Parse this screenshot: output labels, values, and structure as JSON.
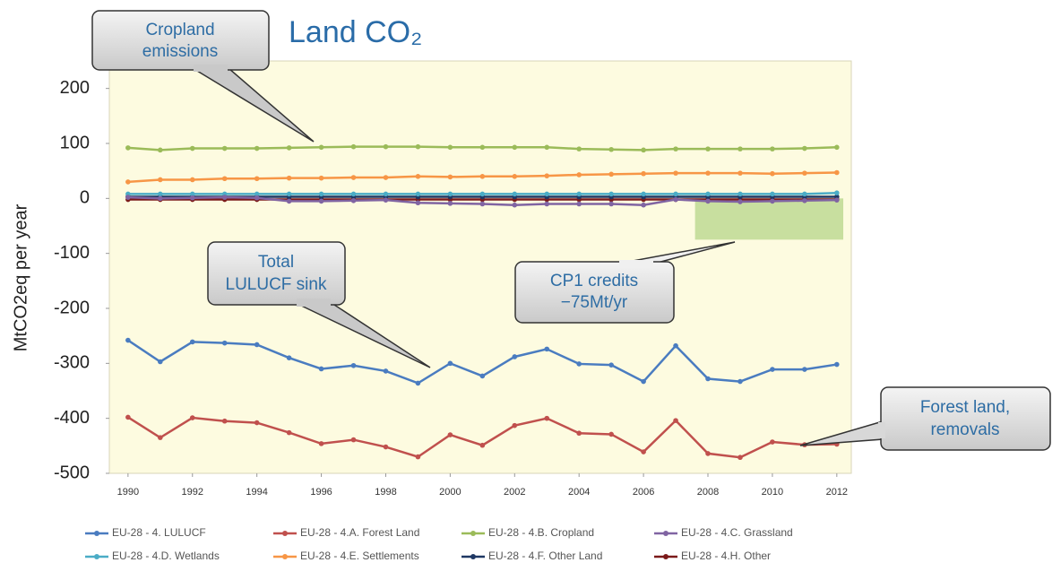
{
  "chart_data": {
    "type": "line",
    "title": "Land CO₂",
    "ylabel": "MtCO2eq per year",
    "x": [
      1990,
      1991,
      1992,
      1993,
      1994,
      1995,
      1996,
      1997,
      1998,
      1999,
      2000,
      2001,
      2002,
      2003,
      2004,
      2005,
      2006,
      2007,
      2008,
      2009,
      2010,
      2011,
      2012
    ],
    "xlim": [
      1989.42,
      2012.45
    ],
    "xticks": [
      1990,
      1992,
      1994,
      1996,
      1998,
      2000,
      2002,
      2004,
      2006,
      2008,
      2010,
      2012
    ],
    "ylim": [
      -500,
      250
    ],
    "yticks": [
      -500,
      -400,
      -300,
      -200,
      -100,
      0,
      100,
      200
    ],
    "grid": false,
    "series": [
      {
        "name": "EU-28 - 4. LULUCF",
        "color": "#4a7cc0",
        "values": [
          -258,
          -297,
          -261,
          -263,
          -266,
          -290,
          -310,
          -304,
          -314,
          -336,
          -300,
          -323,
          -288,
          -274,
          -301,
          -303,
          -333,
          -268,
          -328,
          -333,
          -311,
          -311,
          -302
        ]
      },
      {
        "name": "EU-28 - 4.A. Forest Land",
        "color": "#c0504d",
        "values": [
          -398,
          -435,
          -399,
          -405,
          -408,
          -426,
          -446,
          -439,
          -452,
          -470,
          -430,
          -449,
          -413,
          -400,
          -427,
          -429,
          -461,
          -404,
          -464,
          -471,
          -443,
          -448,
          -447
        ]
      },
      {
        "name": "EU-28 - 4.B. Cropland",
        "color": "#9bbb59",
        "values": [
          92,
          88,
          91,
          91,
          91,
          92,
          93,
          94,
          94,
          94,
          93,
          93,
          93,
          93,
          90,
          89,
          88,
          90,
          90,
          90,
          90,
          91,
          93
        ]
      },
      {
        "name": "EU-28 - 4.C. Grassland",
        "color": "#8064a2",
        "values": [
          2,
          0,
          1,
          2,
          1,
          -5,
          -5,
          -4,
          -3,
          -8,
          -9,
          -10,
          -12,
          -10,
          -10,
          -10,
          -12,
          -2,
          -5,
          -6,
          -5,
          -4,
          -3
        ]
      },
      {
        "name": "EU-28 - 4.D. Wetlands",
        "color": "#4bacc6",
        "values": [
          8,
          8,
          8,
          8,
          8,
          8,
          8,
          8,
          8,
          8,
          8,
          8,
          8,
          8,
          8,
          8,
          8,
          8,
          8,
          8,
          8,
          8,
          10
        ]
      },
      {
        "name": "EU-28 - 4.E. Settlements",
        "color": "#f79646",
        "values": [
          30,
          34,
          34,
          36,
          36,
          37,
          37,
          38,
          38,
          40,
          39,
          40,
          40,
          41,
          43,
          44,
          45,
          46,
          46,
          46,
          45,
          46,
          47
        ]
      },
      {
        "name": "EU-28 - 4.F. Other Land",
        "color": "#1f3864",
        "values": [
          3,
          3,
          3,
          3,
          3,
          3,
          3,
          3,
          3,
          3,
          3,
          3,
          3,
          3,
          3,
          3,
          3,
          3,
          3,
          3,
          3,
          3,
          3
        ]
      },
      {
        "name": "EU-28 - 4.H. Other",
        "color": "#7b1a1a",
        "values": [
          -2,
          -2,
          -2,
          -2,
          -2,
          -2,
          -2,
          -2,
          -2,
          -2,
          -2,
          -2,
          -2,
          -2,
          -2,
          -2,
          -2,
          -2,
          -2,
          -2,
          -2,
          -2,
          -2
        ]
      }
    ],
    "highlight": {
      "x": [
        2007.6,
        2012.2
      ],
      "y": [
        -75,
        0
      ]
    },
    "annotations": [
      [
        "Cropland",
        "emissions"
      ],
      [
        "Total",
        "LULUCF sink"
      ],
      [
        "CP1 credits",
        "−75Mt/yr"
      ],
      [
        "Forest land,",
        "removals"
      ]
    ]
  }
}
